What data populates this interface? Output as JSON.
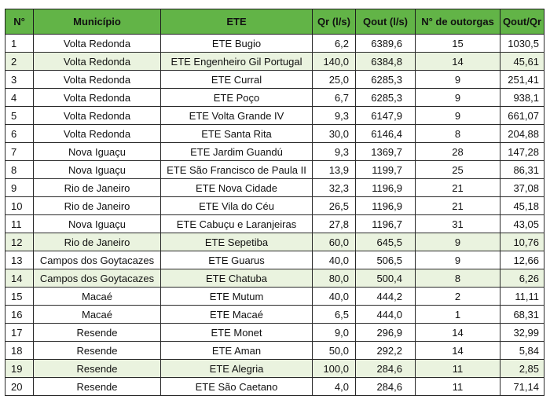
{
  "table": {
    "headers": [
      "N°",
      "Município",
      "ETE",
      "Qr (l/s)",
      "Qout (l/s)",
      "N° de outorgas",
      "Qout/Qr"
    ],
    "rows": [
      {
        "n": "1",
        "municipio": "Volta Redonda",
        "ete": "ETE Bugio",
        "qr": "6,2",
        "qout": "6389,6",
        "outorgas": "15",
        "ratio": "1030,5",
        "shaded": false
      },
      {
        "n": "2",
        "municipio": "Volta Redonda",
        "ete": "ETE Engenheiro Gil Portugal",
        "qr": "140,0",
        "qout": "6384,8",
        "outorgas": "14",
        "ratio": "45,61",
        "shaded": true
      },
      {
        "n": "3",
        "municipio": "Volta Redonda",
        "ete": "ETE Curral",
        "qr": "25,0",
        "qout": "6285,3",
        "outorgas": "9",
        "ratio": "251,41",
        "shaded": false
      },
      {
        "n": "4",
        "municipio": "Volta Redonda",
        "ete": "ETE Poço",
        "qr": "6,7",
        "qout": "6285,3",
        "outorgas": "9",
        "ratio": "938,1",
        "shaded": false
      },
      {
        "n": "5",
        "municipio": "Volta Redonda",
        "ete": "ETE Volta Grande IV",
        "qr": "9,3",
        "qout": "6147,9",
        "outorgas": "9",
        "ratio": "661,07",
        "shaded": false
      },
      {
        "n": "6",
        "municipio": "Volta Redonda",
        "ete": "ETE Santa Rita",
        "qr": "30,0",
        "qout": "6146,4",
        "outorgas": "8",
        "ratio": "204,88",
        "shaded": false
      },
      {
        "n": "7",
        "municipio": "Nova Iguaçu",
        "ete": "ETE Jardim Guandú",
        "qr": "9,3",
        "qout": "1369,7",
        "outorgas": "28",
        "ratio": "147,28",
        "shaded": false
      },
      {
        "n": "8",
        "municipio": "Nova Iguaçu",
        "ete": "ETE São Francisco de Paula II",
        "qr": "13,9",
        "qout": "1199,7",
        "outorgas": "25",
        "ratio": "86,31",
        "shaded": false
      },
      {
        "n": "9",
        "municipio": "Rio de Janeiro",
        "ete": "ETE Nova Cidade",
        "qr": "32,3",
        "qout": "1196,9",
        "outorgas": "21",
        "ratio": "37,08",
        "shaded": false
      },
      {
        "n": "10",
        "municipio": "Rio de Janeiro",
        "ete": "ETE Vila do Céu",
        "qr": "26,5",
        "qout": "1196,9",
        "outorgas": "21",
        "ratio": "45,18",
        "shaded": false
      },
      {
        "n": "11",
        "municipio": "Nova Iguaçu",
        "ete": "ETE Cabuçu e Laranjeiras",
        "qr": "27,8",
        "qout": "1196,7",
        "outorgas": "31",
        "ratio": "43,05",
        "shaded": false
      },
      {
        "n": "12",
        "municipio": "Rio de Janeiro",
        "ete": "ETE Sepetiba",
        "qr": "60,0",
        "qout": "645,5",
        "outorgas": "9",
        "ratio": "10,76",
        "shaded": true
      },
      {
        "n": "13",
        "municipio": "Campos dos Goytacazes",
        "ete": "ETE Guarus",
        "qr": "40,0",
        "qout": "506,5",
        "outorgas": "9",
        "ratio": "12,66",
        "shaded": false
      },
      {
        "n": "14",
        "municipio": "Campos dos Goytacazes",
        "ete": "ETE Chatuba",
        "qr": "80,0",
        "qout": "500,4",
        "outorgas": "8",
        "ratio": "6,26",
        "shaded": true
      },
      {
        "n": "15",
        "municipio": "Macaé",
        "ete": "ETE Mutum",
        "qr": "40,0",
        "qout": "444,2",
        "outorgas": "2",
        "ratio": "11,11",
        "shaded": false
      },
      {
        "n": "16",
        "municipio": "Macaé",
        "ete": "ETE Macaé",
        "qr": "6,5",
        "qout": "444,0",
        "outorgas": "1",
        "ratio": "68,31",
        "shaded": false
      },
      {
        "n": "17",
        "municipio": "Resende",
        "ete": "ETE Monet",
        "qr": "9,0",
        "qout": "296,9",
        "outorgas": "14",
        "ratio": "32,99",
        "shaded": false
      },
      {
        "n": "18",
        "municipio": "Resende",
        "ete": "ETE Aman",
        "qr": "50,0",
        "qout": "292,2",
        "outorgas": "14",
        "ratio": "5,84",
        "shaded": false
      },
      {
        "n": "19",
        "municipio": "Resende",
        "ete": "ETE Alegria",
        "qr": "100,0",
        "qout": "284,6",
        "outorgas": "11",
        "ratio": "2,85",
        "shaded": true
      },
      {
        "n": "20",
        "municipio": "Resende",
        "ete": "ETE São Caetano",
        "qr": "4,0",
        "qout": "284,6",
        "outorgas": "11",
        "ratio": "71,14",
        "shaded": false
      }
    ]
  },
  "colors": {
    "header_bg": "#62b447",
    "shaded_row_bg": "#eaf3df",
    "border": "#1e1e1e"
  }
}
